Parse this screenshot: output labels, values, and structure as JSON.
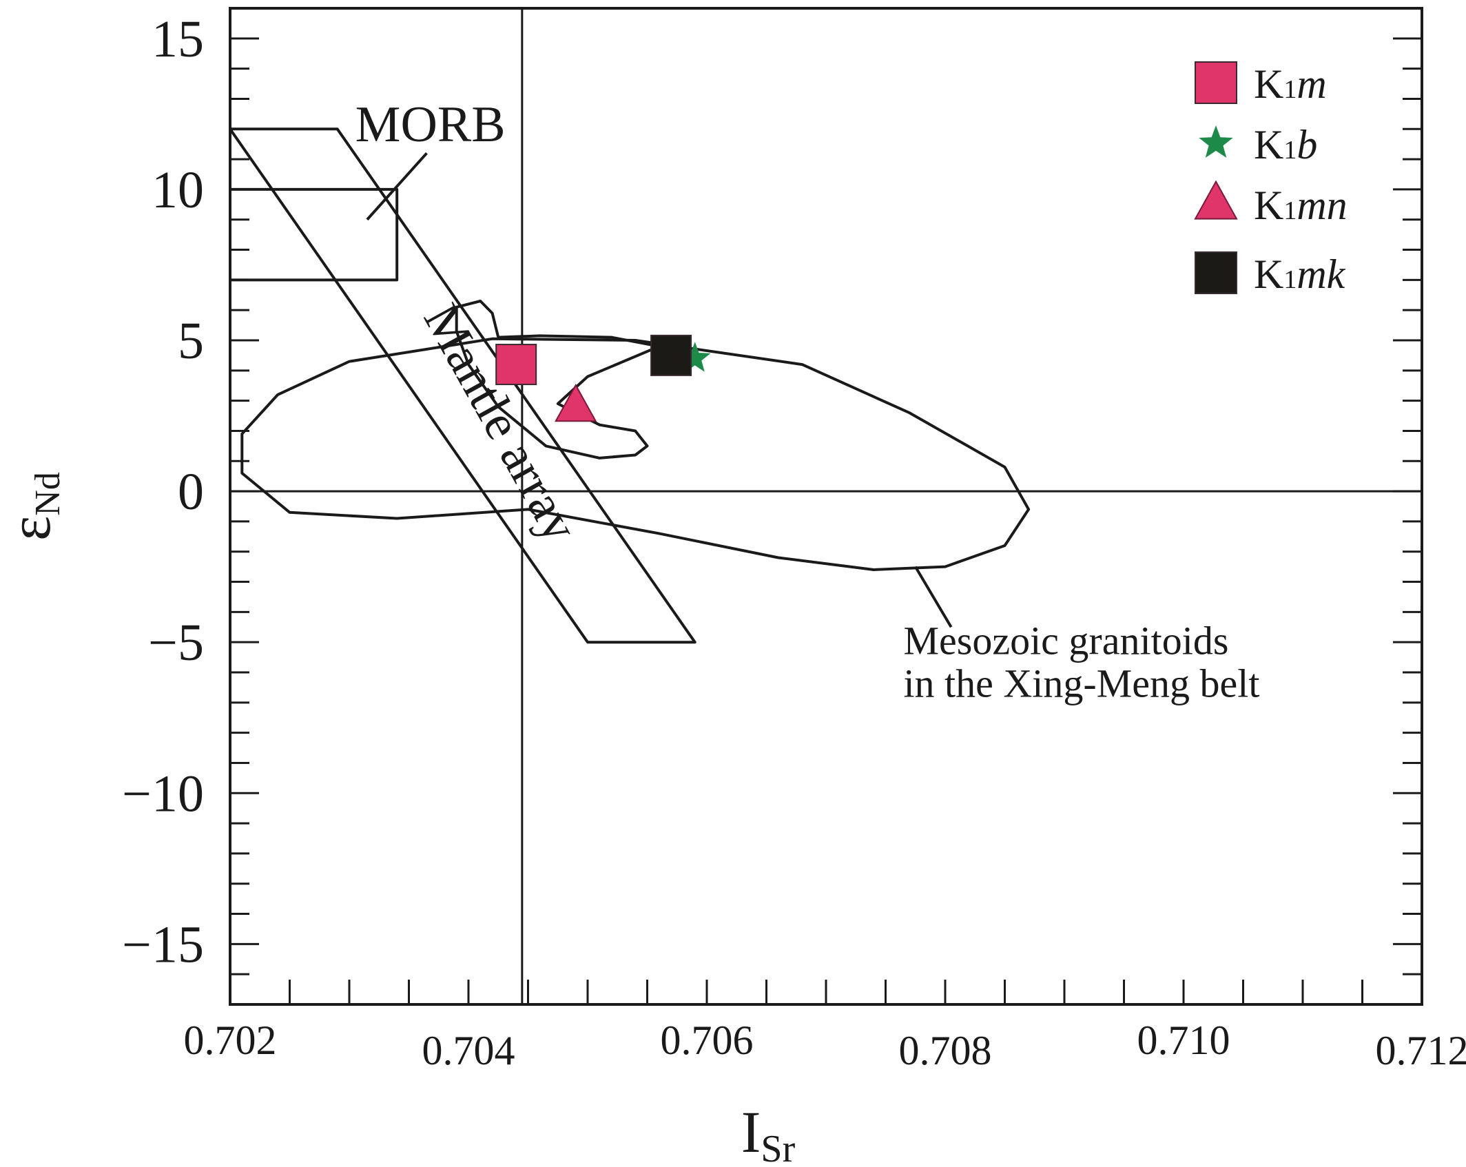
{
  "chart_data": {
    "type": "scatter",
    "xlabel": "ISr",
    "ylabel": "εNd",
    "xlim": [
      0.702,
      0.712
    ],
    "ylim": [
      -17,
      16
    ],
    "x_ticks": [
      {
        "value": 0.702,
        "label": "0.702"
      },
      {
        "value": 0.704,
        "label": "0.704"
      },
      {
        "value": 0.706,
        "label": "0.706"
      },
      {
        "value": 0.708,
        "label": "0.708"
      },
      {
        "value": 0.71,
        "label": "0.710"
      },
      {
        "value": 0.712,
        "label": "0.712"
      }
    ],
    "y_ticks": [
      {
        "value": 15,
        "label": "15"
      },
      {
        "value": 10,
        "label": "10"
      },
      {
        "value": 5,
        "label": "5"
      },
      {
        "value": 0,
        "label": "0"
      },
      {
        "value": -5,
        "label": "−5"
      },
      {
        "value": -10,
        "label": "−10"
      },
      {
        "value": -15,
        "label": "−15"
      }
    ],
    "reference_lines": {
      "x": 0.70445,
      "y": 0
    },
    "series": [
      {
        "name": "K1m",
        "marker": "square",
        "color": "#e0356a",
        "points": [
          {
            "x": 0.7044,
            "y": 4.2
          }
        ]
      },
      {
        "name": "K1b",
        "marker": "star",
        "color": "#1e8a4a",
        "points": [
          {
            "x": 0.7059,
            "y": 4.4
          }
        ]
      },
      {
        "name": "K1mn",
        "marker": "triangle",
        "color": "#e0356a",
        "points": [
          {
            "x": 0.7049,
            "y": 2.8
          }
        ]
      },
      {
        "name": "K1mk",
        "marker": "square",
        "color": "#1c1a17",
        "points": [
          {
            "x": 0.7057,
            "y": 4.5
          }
        ]
      }
    ],
    "legend": {
      "position": "top-right",
      "entries": [
        {
          "prefix": "K",
          "sub": "1",
          "suffix": "m"
        },
        {
          "prefix": "K",
          "sub": "1",
          "suffix": "b"
        },
        {
          "prefix": "K",
          "sub": "1",
          "suffix": "mn"
        },
        {
          "prefix": "K",
          "sub": "1",
          "suffix": "mk"
        }
      ]
    },
    "regions": [
      {
        "label": "MORB",
        "points": [
          [
            0.702,
            10
          ],
          [
            0.7034,
            10
          ],
          [
            0.7034,
            7
          ],
          [
            0.702,
            7
          ]
        ],
        "leader": [
          [
            0.70315,
            9.0
          ],
          [
            0.70365,
            11.2
          ]
        ],
        "label_anchor": [
          0.70305,
          11.6
        ]
      },
      {
        "label": "Mantle array",
        "points": [
          [
            0.702,
            12.0
          ],
          [
            0.7029,
            12.0
          ],
          [
            0.7059,
            -5.0
          ],
          [
            0.705,
            -5.0
          ]
        ],
        "label_anchor": [
          0.70415,
          2.0
        ],
        "label_angle": 61
      },
      {
        "label": "",
        "points": [
          [
            0.70425,
            5.1
          ],
          [
            0.7046,
            5.15
          ],
          [
            0.7052,
            5.1
          ],
          [
            0.7056,
            4.8
          ],
          [
            0.705,
            3.8
          ],
          [
            0.70475,
            2.9
          ],
          [
            0.7051,
            2.2
          ],
          [
            0.7054,
            2.0
          ],
          [
            0.7055,
            1.5
          ],
          [
            0.7054,
            1.2
          ],
          [
            0.7051,
            1.1
          ],
          [
            0.70465,
            1.5
          ],
          [
            0.70425,
            2.8
          ],
          [
            0.704,
            4.2
          ],
          [
            0.7039,
            5.3
          ],
          [
            0.7039,
            6.1
          ],
          [
            0.7041,
            6.3
          ],
          [
            0.7042,
            5.9
          ],
          [
            0.70425,
            5.1
          ]
        ]
      },
      {
        "label": "Mesozoic granitoids\nin the Xing-Meng belt",
        "points": [
          [
            0.7042,
            5.05
          ],
          [
            0.7054,
            5.0
          ],
          [
            0.7068,
            4.2
          ],
          [
            0.7077,
            2.6
          ],
          [
            0.7085,
            0.8
          ],
          [
            0.7087,
            -0.6
          ],
          [
            0.7085,
            -1.8
          ],
          [
            0.708,
            -2.5
          ],
          [
            0.7074,
            -2.6
          ],
          [
            0.7066,
            -2.2
          ],
          [
            0.7056,
            -1.4
          ],
          [
            0.7045,
            -0.6
          ],
          [
            0.7034,
            -0.9
          ],
          [
            0.7025,
            -0.7
          ],
          [
            0.7021,
            0.6
          ],
          [
            0.7021,
            1.9
          ],
          [
            0.7024,
            3.2
          ],
          [
            0.703,
            4.3
          ],
          [
            0.7042,
            5.05
          ]
        ],
        "leader": [
          [
            0.70775,
            -2.5
          ],
          [
            0.70805,
            -4.5
          ]
        ],
        "label_anchor": [
          0.70765,
          -5.4
        ]
      }
    ]
  }
}
